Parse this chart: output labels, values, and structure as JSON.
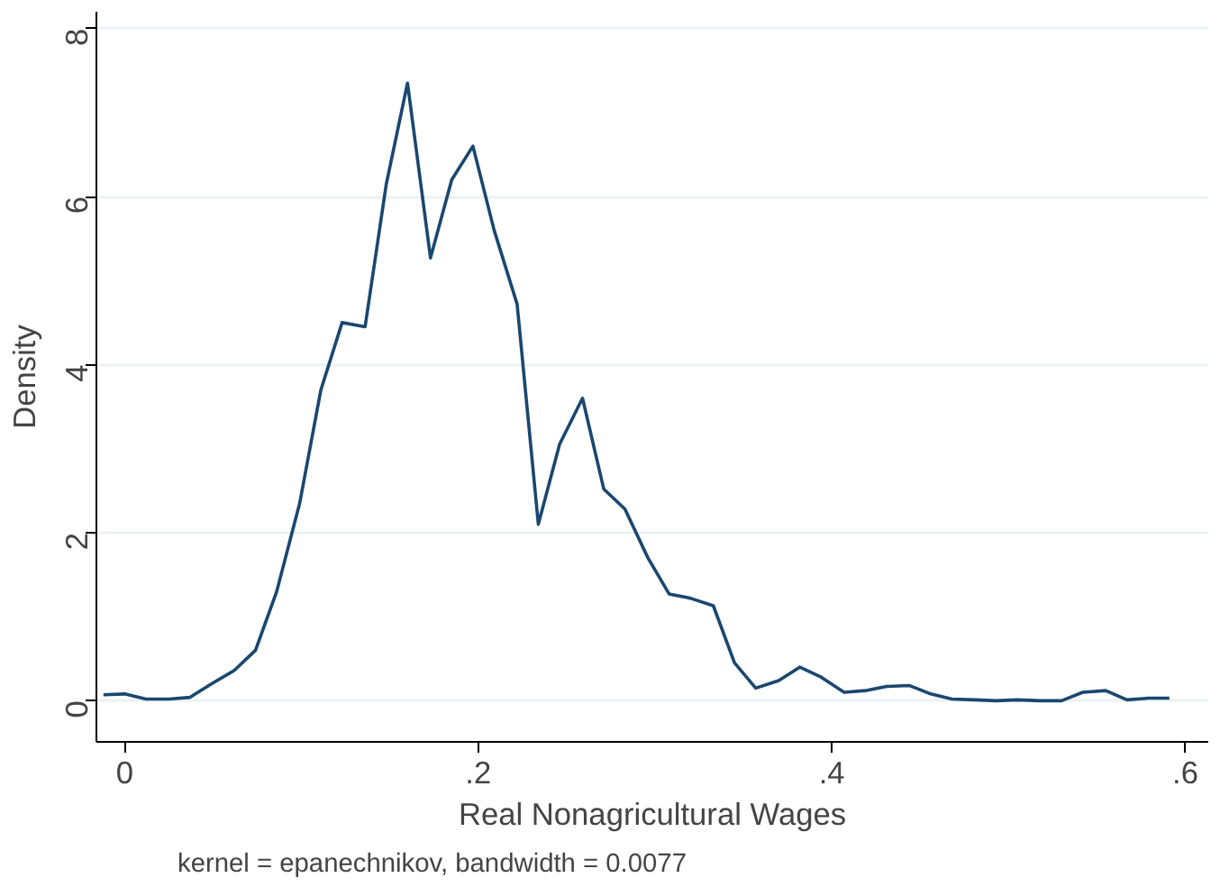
{
  "chart_data": {
    "type": "line",
    "xlabel": "Real Nonagricultural Wages",
    "ylabel": "Density",
    "x": [
      -0.012,
      0.0,
      0.012,
      0.025,
      0.037,
      0.049,
      0.062,
      0.074,
      0.086,
      0.099,
      0.111,
      0.123,
      0.136,
      0.148,
      0.16,
      0.173,
      0.185,
      0.197,
      0.209,
      0.222,
      0.234,
      0.246,
      0.259,
      0.271,
      0.283,
      0.296,
      0.308,
      0.32,
      0.333,
      0.345,
      0.357,
      0.37,
      0.382,
      0.394,
      0.407,
      0.419,
      0.431,
      0.444,
      0.456,
      0.468,
      0.481,
      0.493,
      0.505,
      0.518,
      0.53,
      0.542,
      0.555,
      0.567,
      0.579,
      0.591
    ],
    "series": [
      {
        "color": "#1a476f",
        "values": [
          0.07,
          0.08,
          0.02,
          0.02,
          0.04,
          0.2,
          0.36,
          0.6,
          1.3,
          2.35,
          3.7,
          4.5,
          4.45,
          6.15,
          7.35,
          5.27,
          6.2,
          6.6,
          5.6,
          4.72,
          2.1,
          3.05,
          3.6,
          2.52,
          2.28,
          1.7,
          1.27,
          1.22,
          1.13,
          0.45,
          0.15,
          0.24,
          0.4,
          0.28,
          0.1,
          0.12,
          0.17,
          0.18,
          0.08,
          0.02,
          0.01,
          0.0,
          0.01,
          0.0,
          0.0,
          0.1,
          0.12,
          0.01,
          0.03,
          0.03
        ]
      }
    ],
    "xlim": [
      -0.016,
      0.613
    ],
    "ylim": [
      -0.49,
      8.2
    ],
    "xticks": [
      {
        "value": 0,
        "label": "0"
      },
      {
        "value": 0.2,
        "label": ".2"
      },
      {
        "value": 0.4,
        "label": ".4"
      },
      {
        "value": 0.6,
        "label": ".6"
      }
    ],
    "yticks": [
      0,
      2,
      4,
      6,
      8
    ],
    "grid": "y",
    "marker": "none",
    "line_style": "solid",
    "annotations": [
      "kernel = epanechnikov, bandwidth = 0.0077"
    ]
  }
}
